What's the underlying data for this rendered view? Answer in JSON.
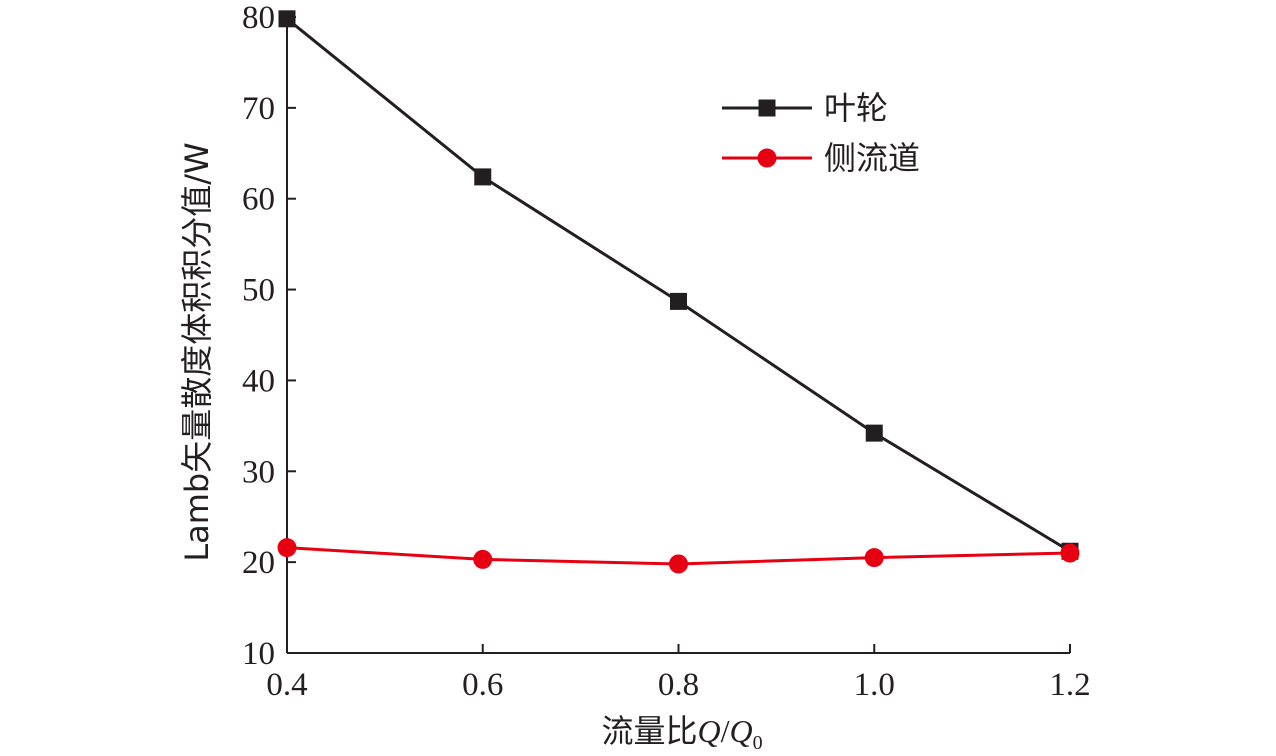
{
  "chart_data": {
    "type": "line",
    "xlabel": "流量比Q/Q0",
    "xlabel_parts": {
      "prefix": "流量比",
      "q": "Q",
      "slash": "/",
      "q0": "Q",
      "sub": "0"
    },
    "ylabel": "Lamb矢量散度体积积分值/W",
    "x": [
      0.4,
      0.6,
      0.8,
      1.0,
      1.2
    ],
    "xticks": [
      "0.4",
      "0.6",
      "0.8",
      "1.0",
      "1.2"
    ],
    "yticks": [
      "10",
      "20",
      "30",
      "40",
      "50",
      "60",
      "70",
      "80"
    ],
    "xlim": [
      0.4,
      1.2
    ],
    "ylim": [
      10,
      80
    ],
    "grid": false,
    "legend_position": "top-right",
    "series": [
      {
        "name": "叶轮",
        "marker": "square",
        "color": "#231f20",
        "values": [
          79.8,
          62.4,
          48.7,
          34.2,
          21.2
        ]
      },
      {
        "name": "侧流道",
        "marker": "circle",
        "color": "#e60012",
        "values": [
          21.6,
          20.3,
          19.8,
          20.5,
          21.0
        ]
      }
    ]
  }
}
